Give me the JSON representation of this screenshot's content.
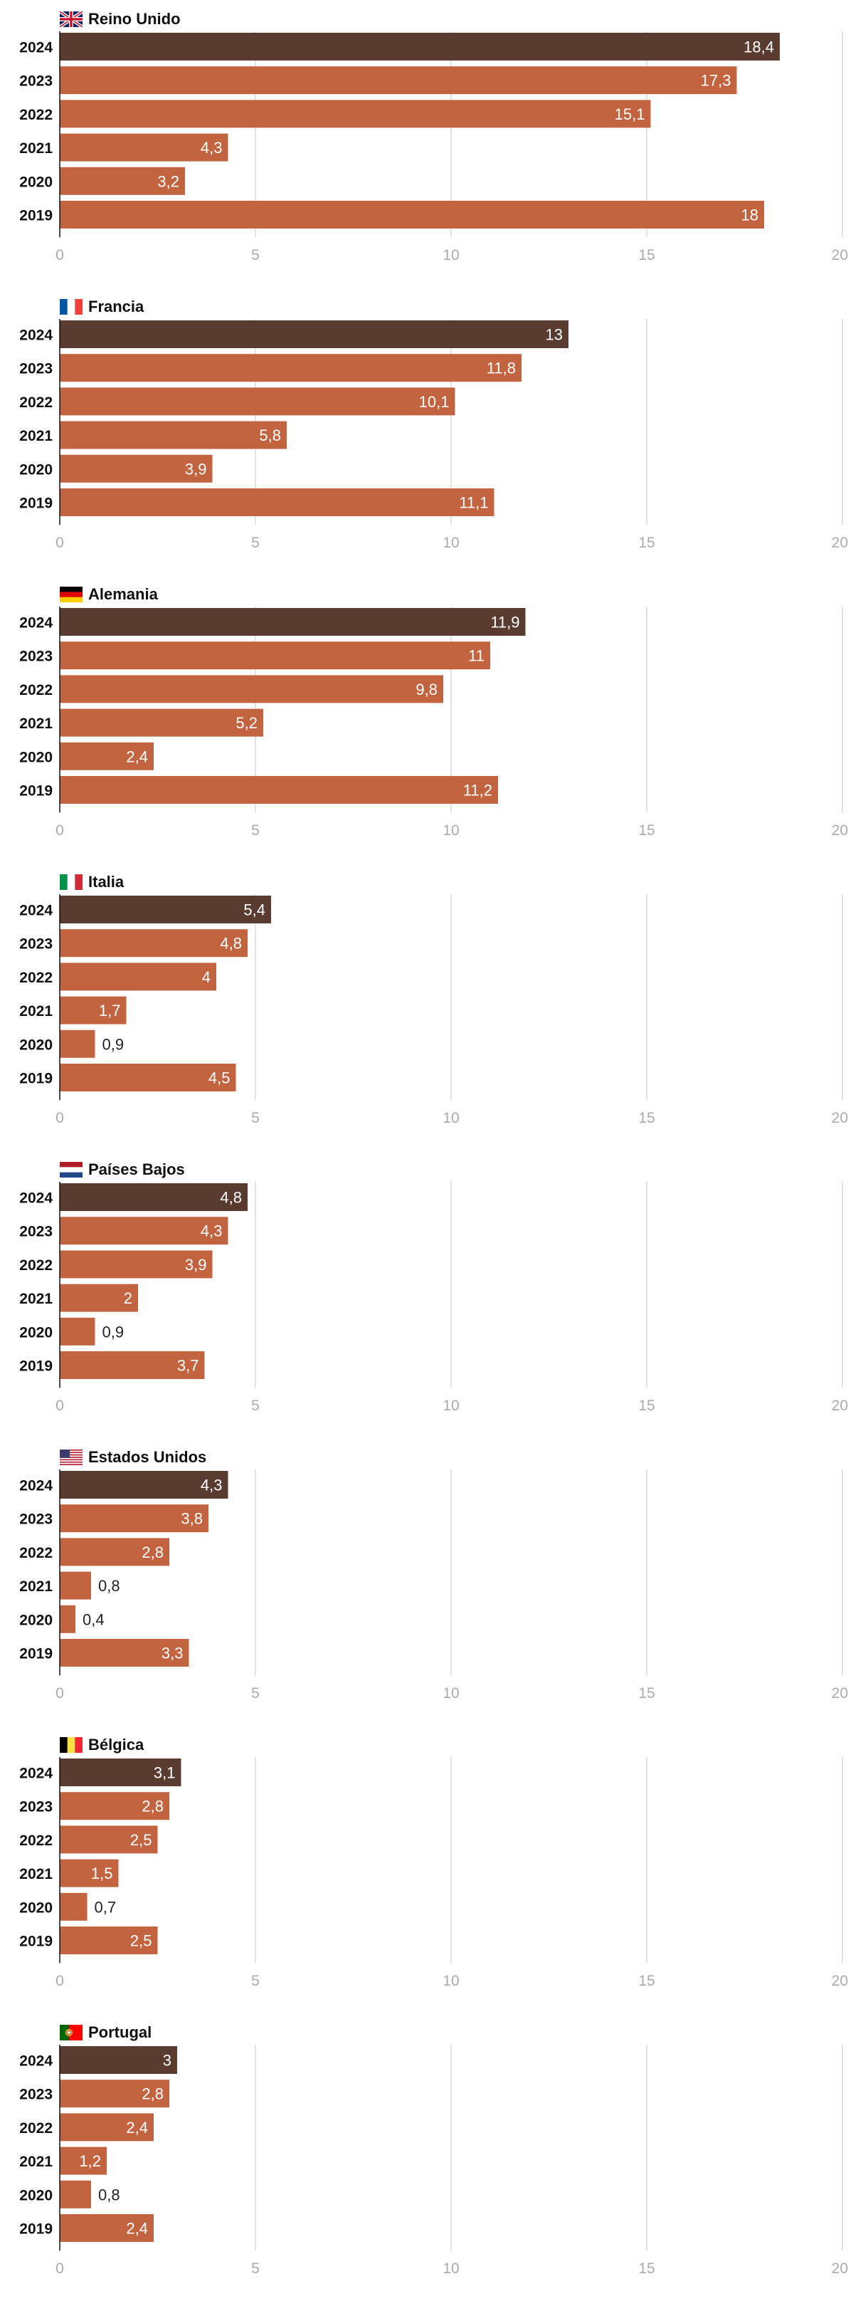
{
  "colors": {
    "bar_current": "#5a3b30",
    "bar_past": "#c2643f",
    "grid": "#e3e3e3",
    "label_inside": "#ffffff",
    "label_outside": "#222222"
  },
  "chart_data": [
    {
      "type": "bar",
      "orientation": "horizontal",
      "title": "Reino Unido",
      "flag": "gb-flag-icon",
      "categories": [
        "2024",
        "2023",
        "2022",
        "2021",
        "2020",
        "2019"
      ],
      "values": [
        18.4,
        17.3,
        15.1,
        4.3,
        3.2,
        18
      ],
      "value_labels": [
        "18,4",
        "17,3",
        "15,1",
        "4,3",
        "3,2",
        "18"
      ],
      "xlim": [
        0,
        20
      ],
      "xticks": [
        "0",
        "5",
        "10",
        "15",
        "20"
      ]
    },
    {
      "type": "bar",
      "orientation": "horizontal",
      "title": "Francia",
      "flag": "fr-flag-icon",
      "categories": [
        "2024",
        "2023",
        "2022",
        "2021",
        "2020",
        "2019"
      ],
      "values": [
        13,
        11.8,
        10.1,
        5.8,
        3.9,
        11.1
      ],
      "value_labels": [
        "13",
        "11,8",
        "10,1",
        "5,8",
        "3,9",
        "11,1"
      ],
      "xlim": [
        0,
        20
      ],
      "xticks": [
        "0",
        "5",
        "10",
        "15",
        "20"
      ]
    },
    {
      "type": "bar",
      "orientation": "horizontal",
      "title": "Alemania",
      "flag": "de-flag-icon",
      "categories": [
        "2024",
        "2023",
        "2022",
        "2021",
        "2020",
        "2019"
      ],
      "values": [
        11.9,
        11,
        9.8,
        5.2,
        2.4,
        11.2
      ],
      "value_labels": [
        "11,9",
        "11",
        "9,8",
        "5,2",
        "2,4",
        "11,2"
      ],
      "xlim": [
        0,
        20
      ],
      "xticks": [
        "0",
        "5",
        "10",
        "15",
        "20"
      ]
    },
    {
      "type": "bar",
      "orientation": "horizontal",
      "title": "Italia",
      "flag": "it-flag-icon",
      "categories": [
        "2024",
        "2023",
        "2022",
        "2021",
        "2020",
        "2019"
      ],
      "values": [
        5.4,
        4.8,
        4,
        1.7,
        0.9,
        4.5
      ],
      "value_labels": [
        "5,4",
        "4,8",
        "4",
        "1,7",
        "0,9",
        "4,5"
      ],
      "xlim": [
        0,
        20
      ],
      "xticks": [
        "0",
        "5",
        "10",
        "15",
        "20"
      ]
    },
    {
      "type": "bar",
      "orientation": "horizontal",
      "title": "Países Bajos",
      "flag": "nl-flag-icon",
      "categories": [
        "2024",
        "2023",
        "2022",
        "2021",
        "2020",
        "2019"
      ],
      "values": [
        4.8,
        4.3,
        3.9,
        2,
        0.9,
        3.7
      ],
      "value_labels": [
        "4,8",
        "4,3",
        "3,9",
        "2",
        "0,9",
        "3,7"
      ],
      "xlim": [
        0,
        20
      ],
      "xticks": [
        "0",
        "5",
        "10",
        "15",
        "20"
      ]
    },
    {
      "type": "bar",
      "orientation": "horizontal",
      "title": "Estados Unidos",
      "flag": "us-flag-icon",
      "categories": [
        "2024",
        "2023",
        "2022",
        "2021",
        "2020",
        "2019"
      ],
      "values": [
        4.3,
        3.8,
        2.8,
        0.8,
        0.4,
        3.3
      ],
      "value_labels": [
        "4,3",
        "3,8",
        "2,8",
        "0,8",
        "0,4",
        "3,3"
      ],
      "xlim": [
        0,
        20
      ],
      "xticks": [
        "0",
        "5",
        "10",
        "15",
        "20"
      ]
    },
    {
      "type": "bar",
      "orientation": "horizontal",
      "title": "Bélgica",
      "flag": "be-flag-icon",
      "categories": [
        "2024",
        "2023",
        "2022",
        "2021",
        "2020",
        "2019"
      ],
      "values": [
        3.1,
        2.8,
        2.5,
        1.5,
        0.7,
        2.5
      ],
      "value_labels": [
        "3,1",
        "2,8",
        "2,5",
        "1,5",
        "0,7",
        "2,5"
      ],
      "xlim": [
        0,
        20
      ],
      "xticks": [
        "0",
        "5",
        "10",
        "15",
        "20"
      ]
    },
    {
      "type": "bar",
      "orientation": "horizontal",
      "title": "Portugal",
      "flag": "pt-flag-icon",
      "categories": [
        "2024",
        "2023",
        "2022",
        "2021",
        "2020",
        "2019"
      ],
      "values": [
        3,
        2.8,
        2.4,
        1.2,
        0.8,
        2.4
      ],
      "value_labels": [
        "3",
        "2,8",
        "2,4",
        "1,2",
        "0,8",
        "2,4"
      ],
      "xlim": [
        0,
        20
      ],
      "xticks": [
        "0",
        "5",
        "10",
        "15",
        "20"
      ]
    }
  ]
}
